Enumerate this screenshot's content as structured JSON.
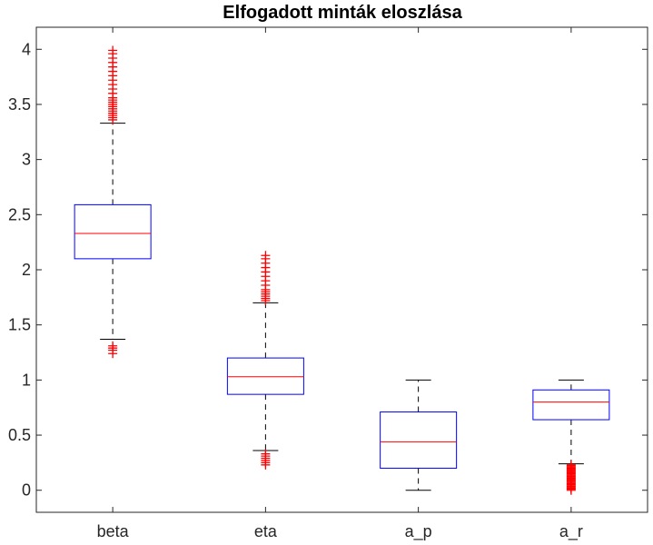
{
  "chart_data": {
    "type": "box",
    "title": "Elfogadott minták eloszlása",
    "xlabel": "",
    "ylabel": "",
    "ylim": [
      -0.2,
      4.2
    ],
    "yticks": [
      0,
      0.5,
      1,
      1.5,
      2,
      2.5,
      3,
      3.5,
      4
    ],
    "ytick_labels": [
      "0",
      "0.5",
      "1",
      "1.5",
      "2",
      "2.5",
      "3",
      "3.5",
      "4"
    ],
    "grid": false,
    "colors": {
      "box": "#0000ff",
      "median": "#ff0000",
      "whisker": "#000000",
      "outlier": "#ff0000",
      "axis": "#262626"
    },
    "categories": [
      "beta",
      "eta",
      "a_p",
      "a_r"
    ],
    "boxes": [
      {
        "name": "beta",
        "whisker_low": 1.37,
        "q1": 2.1,
        "median": 2.33,
        "q3": 2.59,
        "whisker_high": 3.33,
        "outliers": [
          1.24,
          1.27,
          1.29,
          1.31,
          3.36,
          3.38,
          3.4,
          3.42,
          3.44,
          3.46,
          3.48,
          3.5,
          3.52,
          3.54,
          3.56,
          3.6,
          3.64,
          3.68,
          3.72,
          3.76,
          3.8,
          3.84,
          3.88,
          3.92,
          3.96,
          3.99
        ]
      },
      {
        "name": "eta",
        "whisker_low": 0.36,
        "q1": 0.87,
        "median": 1.03,
        "q3": 1.2,
        "whisker_high": 1.7,
        "outliers": [
          0.23,
          0.25,
          0.27,
          0.29,
          0.31,
          0.33,
          1.72,
          1.74,
          1.76,
          1.78,
          1.8,
          1.82,
          1.86,
          1.9,
          1.94,
          1.98,
          2.02,
          2.06,
          2.1,
          2.13
        ]
      },
      {
        "name": "a_p",
        "whisker_low": 0.0,
        "q1": 0.2,
        "median": 0.44,
        "q3": 0.71,
        "whisker_high": 1.0,
        "outliers": []
      },
      {
        "name": "a_r",
        "whisker_low": 0.24,
        "q1": 0.64,
        "median": 0.8,
        "q3": 0.91,
        "whisker_high": 1.0,
        "outliers": [
          0.0,
          0.01,
          0.02,
          0.03,
          0.04,
          0.05,
          0.06,
          0.07,
          0.08,
          0.09,
          0.1,
          0.11,
          0.12,
          0.13,
          0.14,
          0.15,
          0.16,
          0.17,
          0.18,
          0.19,
          0.2,
          0.21,
          0.22,
          0.23
        ]
      }
    ]
  }
}
